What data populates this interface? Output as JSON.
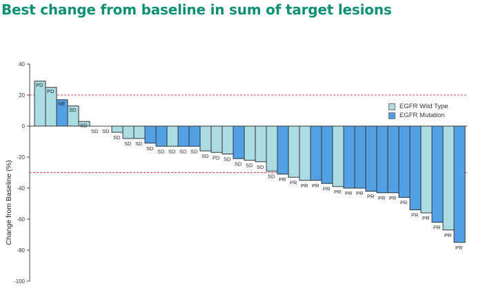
{
  "title": "Best change from baseline in sum of target lesions",
  "colors": {
    "title": "#0f8f74",
    "wild_type": "#abdbe3",
    "mutation": "#53a0e6",
    "bar_stroke": "#333333",
    "reference_line": "#e04040"
  },
  "chart_data": {
    "type": "bar",
    "title": "Best change from baseline in sum of target lesions",
    "xlabel": "",
    "ylabel": "Change from Baseline (%)",
    "ylim": [
      -100,
      40
    ],
    "yticks": [
      40,
      20,
      0,
      -20,
      -40,
      -60,
      -80,
      -100
    ],
    "reference_lines": [
      20,
      -30
    ],
    "legend": {
      "position": "top-right",
      "entries": [
        "EGFR Wild Type",
        "EGFR Mutation"
      ]
    },
    "series_names": [
      "EGFR Wild Type",
      "EGFR Mutation"
    ],
    "bars": [
      {
        "value": 29,
        "group": 0,
        "label": "PD"
      },
      {
        "value": 25,
        "group": 0,
        "label": "PD"
      },
      {
        "value": 17,
        "group": 1,
        "label": "NE"
      },
      {
        "value": 13,
        "group": 0,
        "label": "SD"
      },
      {
        "value": 3,
        "group": 0,
        "label": "SD"
      },
      {
        "value": 0,
        "group": 0,
        "label": "SD"
      },
      {
        "value": 0,
        "group": 0,
        "label": "SD"
      },
      {
        "value": -4,
        "group": 0,
        "label": "SD"
      },
      {
        "value": -8,
        "group": 0,
        "label": "SD"
      },
      {
        "value": -8,
        "group": 0,
        "label": "SD"
      },
      {
        "value": -11,
        "group": 1,
        "label": "SD"
      },
      {
        "value": -13,
        "group": 1,
        "label": "SD"
      },
      {
        "value": -13,
        "group": 0,
        "label": "SD"
      },
      {
        "value": -13,
        "group": 1,
        "label": "SD"
      },
      {
        "value": -13,
        "group": 1,
        "label": "SD"
      },
      {
        "value": -16,
        "group": 0,
        "label": "SD"
      },
      {
        "value": -17,
        "group": 0,
        "label": "PD"
      },
      {
        "value": -18,
        "group": 0,
        "label": "SD"
      },
      {
        "value": -21,
        "group": 1,
        "label": "SD"
      },
      {
        "value": -22,
        "group": 0,
        "label": "SD"
      },
      {
        "value": -23,
        "group": 0,
        "label": "SD"
      },
      {
        "value": -29,
        "group": 0,
        "label": "SD"
      },
      {
        "value": -31,
        "group": 1,
        "label": "PR"
      },
      {
        "value": -33,
        "group": 0,
        "label": "PR"
      },
      {
        "value": -35,
        "group": 0,
        "label": "PR"
      },
      {
        "value": -35,
        "group": 1,
        "label": "PR"
      },
      {
        "value": -37,
        "group": 1,
        "label": "PR"
      },
      {
        "value": -39,
        "group": 0,
        "label": "PR"
      },
      {
        "value": -40,
        "group": 1,
        "label": "PR"
      },
      {
        "value": -40,
        "group": 1,
        "label": "PR"
      },
      {
        "value": -42,
        "group": 1,
        "label": "PR"
      },
      {
        "value": -43,
        "group": 1,
        "label": "PR"
      },
      {
        "value": -43,
        "group": 1,
        "label": "PR"
      },
      {
        "value": -46,
        "group": 1,
        "label": "PR"
      },
      {
        "value": -54,
        "group": 1,
        "label": "PR"
      },
      {
        "value": -56,
        "group": 0,
        "label": "PR"
      },
      {
        "value": -62,
        "group": 1,
        "label": "PR"
      },
      {
        "value": -67,
        "group": 0,
        "label": "PR"
      },
      {
        "value": -75,
        "group": 1,
        "label": "PR"
      }
    ]
  }
}
